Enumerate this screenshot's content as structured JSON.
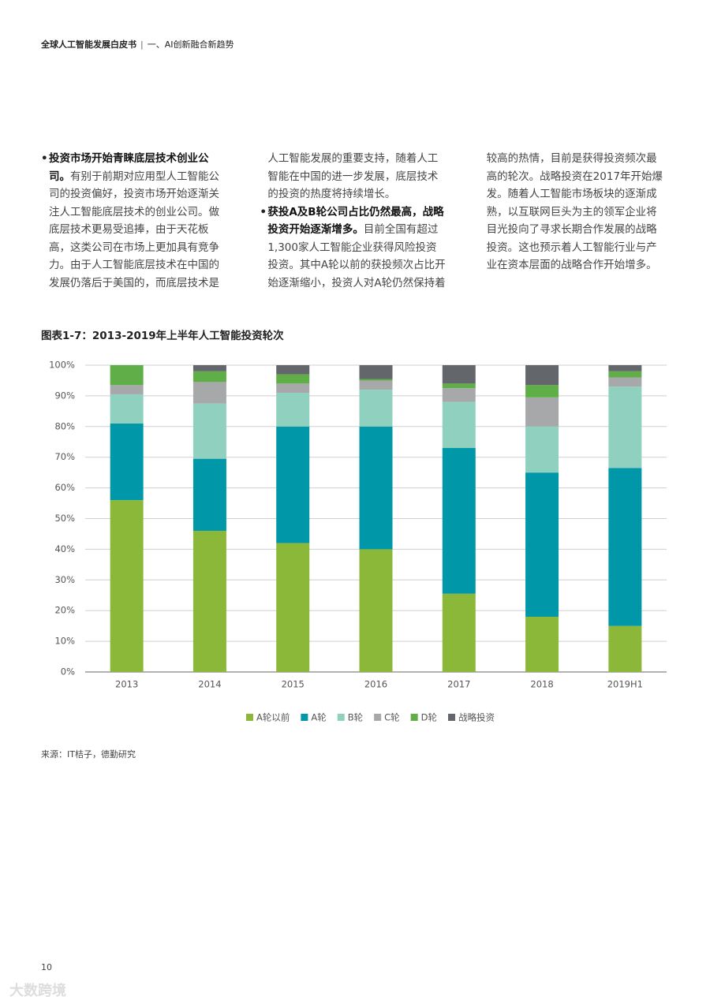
{
  "header": {
    "title": "全球人工智能发展白皮书",
    "section": "一、AI创新融合新趋势"
  },
  "body": {
    "bullets": [
      {
        "lead": "投资市场开始青睐底层技术创业公司。",
        "text": "有别于前期对应用型人工智能公司的投资偏好，投资市场开始逐渐关注人工智能底层技术的创业公司。做底层技术更易受追捧，由于天花板高，这类公司在市场上更加具有竞争力。由于人工智能底层技术在中国的发展仍落后于美国的，而底层技术是人工智能发展的重要支持，随着人工智能在中国的进一步发展，底层技术的投资的热度将持续增长。"
      },
      {
        "lead": "获投A及B轮公司占比仍然最高，战略投资开始逐渐增多。",
        "text": "目前全国有超过1,300家人工智能企业获得风险投资投资。其中A轮以前的获投频次占比开始逐渐缩小，投资人对A轮仍然保持着较高的热情，目前是获得投资频次最高的轮次。战略投资在2017年开始爆发。随着人工智能市场板块的逐渐成熟，以互联网巨头为主的领军企业将目光投向了寻求长期合作发展的战略投资。这也预示着人工智能行业与产业在资本层面的战略合作开始增多。"
      }
    ]
  },
  "chart_data": {
    "type": "stacked_bar",
    "title": "图表1-7：2013-2019年上半年人工智能投资轮次",
    "categories": [
      "2013",
      "2014",
      "2015",
      "2016",
      "2017",
      "2018",
      "2019H1"
    ],
    "series": [
      {
        "name": "A轮以前",
        "color": "#8cb83a",
        "values": [
          56,
          46,
          42,
          40,
          25.5,
          18,
          15
        ]
      },
      {
        "name": "A轮",
        "color": "#0097a9",
        "values": [
          25,
          23.5,
          38,
          40,
          47.5,
          47,
          51.5
        ]
      },
      {
        "name": "B轮",
        "color": "#8fd0bf",
        "values": [
          9.5,
          18,
          11,
          12,
          15,
          15,
          26.5
        ]
      },
      {
        "name": "C轮",
        "color": "#a7a8aa",
        "values": [
          3,
          7,
          3,
          3,
          4.5,
          9.5,
          3
        ]
      },
      {
        "name": "D轮",
        "color": "#5fae47",
        "values": [
          6.5,
          3.5,
          3,
          0.5,
          1.5,
          4,
          2
        ]
      },
      {
        "name": "战略投资",
        "color": "#63666a",
        "values": [
          0,
          2,
          3,
          4.5,
          6,
          6.5,
          2
        ]
      }
    ],
    "ylim": [
      0,
      100
    ],
    "yticks": [
      {
        "value": 0,
        "label": "0%"
      },
      {
        "value": 10,
        "label": "10%"
      },
      {
        "value": 20,
        "label": "20%"
      },
      {
        "value": 30,
        "label": "30%"
      },
      {
        "value": 40,
        "label": "40%"
      },
      {
        "value": 50,
        "label": "50%"
      },
      {
        "value": 60,
        "label": "60%"
      },
      {
        "value": 70,
        "label": "70%"
      },
      {
        "value": 80,
        "label": "80%"
      },
      {
        "value": 90,
        "label": "90%"
      },
      {
        "value": 100,
        "label": "100%"
      }
    ],
    "grid": true,
    "legend": "bottom"
  },
  "source": "来源：IT桔子，德勤研究",
  "page_number": "10",
  "watermark": "大数跨境"
}
